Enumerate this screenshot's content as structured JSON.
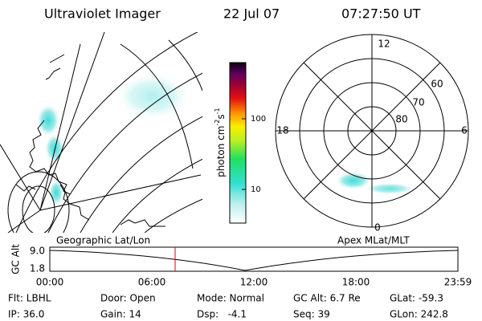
{
  "header": {
    "instrument": "Ultraviolet Imager",
    "date": "22 Jul 07",
    "time": "07:27:50 UT"
  },
  "colorbar": {
    "label_parts": [
      "photon cm",
      "-2",
      "s",
      "-1"
    ],
    "ticks": [
      "100",
      "10"
    ]
  },
  "polar": {
    "mlt_labels": [
      "12",
      "18",
      "6",
      "0"
    ],
    "lat_labels": [
      "60",
      "70",
      "80"
    ]
  },
  "timeline": {
    "left_label": "Geographic Lat/Lon",
    "right_label": "Apex MLat/MLT",
    "y_axis_label": "GC Alt",
    "y_ticks": [
      "9.0",
      "1.8"
    ],
    "x_ticks": [
      "00:00",
      "06:00",
      "12:00",
      "18:00",
      "23:59"
    ]
  },
  "status": {
    "rows": [
      [
        "Flt: LBHL",
        "Door: Open",
        "Mode: Normal",
        "GC Alt: 6.7 Re",
        "GLat: -59.3"
      ],
      [
        "IP: 36.0",
        "Gain: 14",
        "Dsp:   -4.1",
        "Seq: 39",
        "GLon: 242.8"
      ]
    ]
  }
}
